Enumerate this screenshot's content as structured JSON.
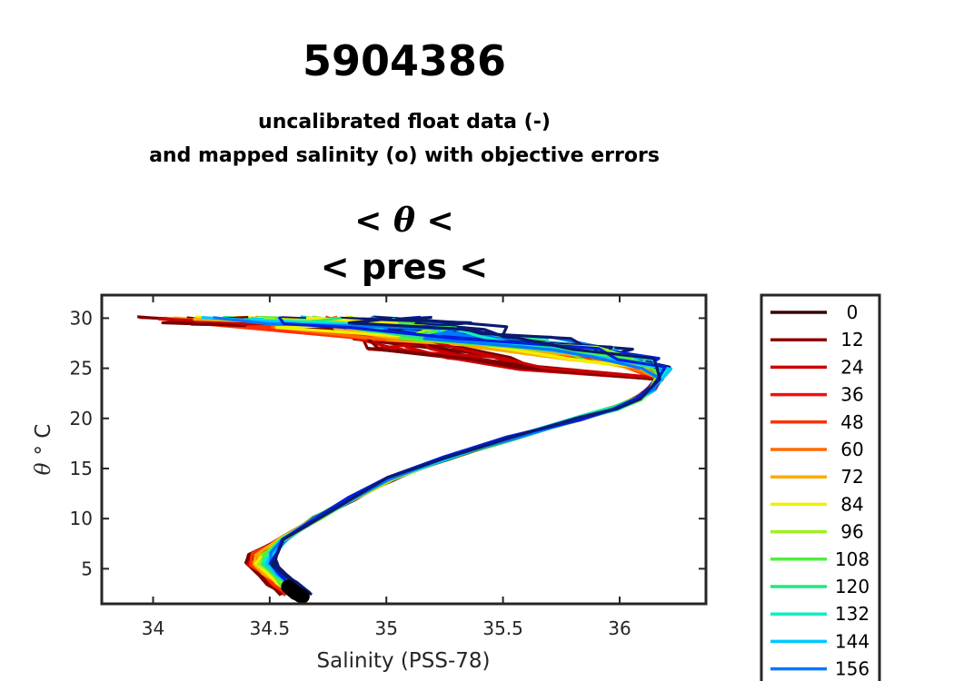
{
  "title": "5904386",
  "subtitle_line1": "uncalibrated float data (-)",
  "subtitle_line2": "and mapped salinity (o) with objective errors",
  "subtitle_line3_left": "<",
  "subtitle_line3_symbol": "θ",
  "subtitle_line3_right": "<",
  "subtitle_line4": "< pres <",
  "chart_data": {
    "type": "line",
    "xlabel": "Salinity (PSS-78)",
    "ylabel_symbol": "θ",
    "ylabel_unit": "° C",
    "xlim": [
      33.78,
      36.37
    ],
    "ylim": [
      1.5,
      32.3
    ],
    "xticks": [
      34,
      34.5,
      35,
      35.5,
      36
    ],
    "xtick_labels": [
      "34",
      "34.5",
      "35",
      "35.5",
      "36"
    ],
    "yticks": [
      5,
      10,
      15,
      20,
      25,
      30
    ],
    "ytick_labels": [
      "5",
      "10",
      "15",
      "20",
      "25",
      "30"
    ],
    "legend_position": "right-outside",
    "legend": [
      {
        "label": "0",
        "color": "#3a0000"
      },
      {
        "label": "12",
        "color": "#8b0000"
      },
      {
        "label": "24",
        "color": "#cc0000"
      },
      {
        "label": "36",
        "color": "#ee1010"
      },
      {
        "label": "48",
        "color": "#ff3000"
      },
      {
        "label": "60",
        "color": "#ff6a00"
      },
      {
        "label": "72",
        "color": "#ffaa00"
      },
      {
        "label": "84",
        "color": "#f0f000"
      },
      {
        "label": "96",
        "color": "#a0f020"
      },
      {
        "label": "108",
        "color": "#50ee40"
      },
      {
        "label": "120",
        "color": "#20e880"
      },
      {
        "label": "132",
        "color": "#10eec0"
      },
      {
        "label": "144",
        "color": "#00c8ff"
      },
      {
        "label": "156",
        "color": "#0078ff"
      }
    ],
    "profile_colors": [
      "#7a0000",
      "#cc0000",
      "#ff3000",
      "#ff6a00",
      "#ffaa00",
      "#f0f000",
      "#a0f020",
      "#50ee40",
      "#20e880",
      "#10eec0",
      "#00c8ff",
      "#0078ff",
      "#0020e0",
      "#0b1a6e"
    ],
    "profile_shape": {
      "theta": [
        2.5,
        3.5,
        4.5,
        5.5,
        6.5,
        8,
        10,
        12,
        14,
        16,
        18,
        20,
        21,
        22,
        23,
        24,
        25,
        26,
        27,
        28,
        29,
        29.5,
        30
      ],
      "salinity": [
        34.63,
        34.57,
        34.52,
        34.48,
        34.49,
        34.56,
        34.7,
        34.85,
        35.02,
        35.25,
        35.53,
        35.83,
        35.98,
        36.08,
        36.14,
        36.17,
        36.13,
        35.95,
        35.7,
        35.3,
        34.9,
        34.7,
        34.5
      ]
    },
    "mapped_deep_points": {
      "salinity": [
        34.58,
        34.59,
        34.6,
        34.61,
        34.62,
        34.63,
        34.64
      ],
      "theta": [
        3.2,
        3.0,
        2.8,
        2.6,
        2.5,
        2.35,
        2.25
      ]
    },
    "mapped_color": "#000000"
  }
}
